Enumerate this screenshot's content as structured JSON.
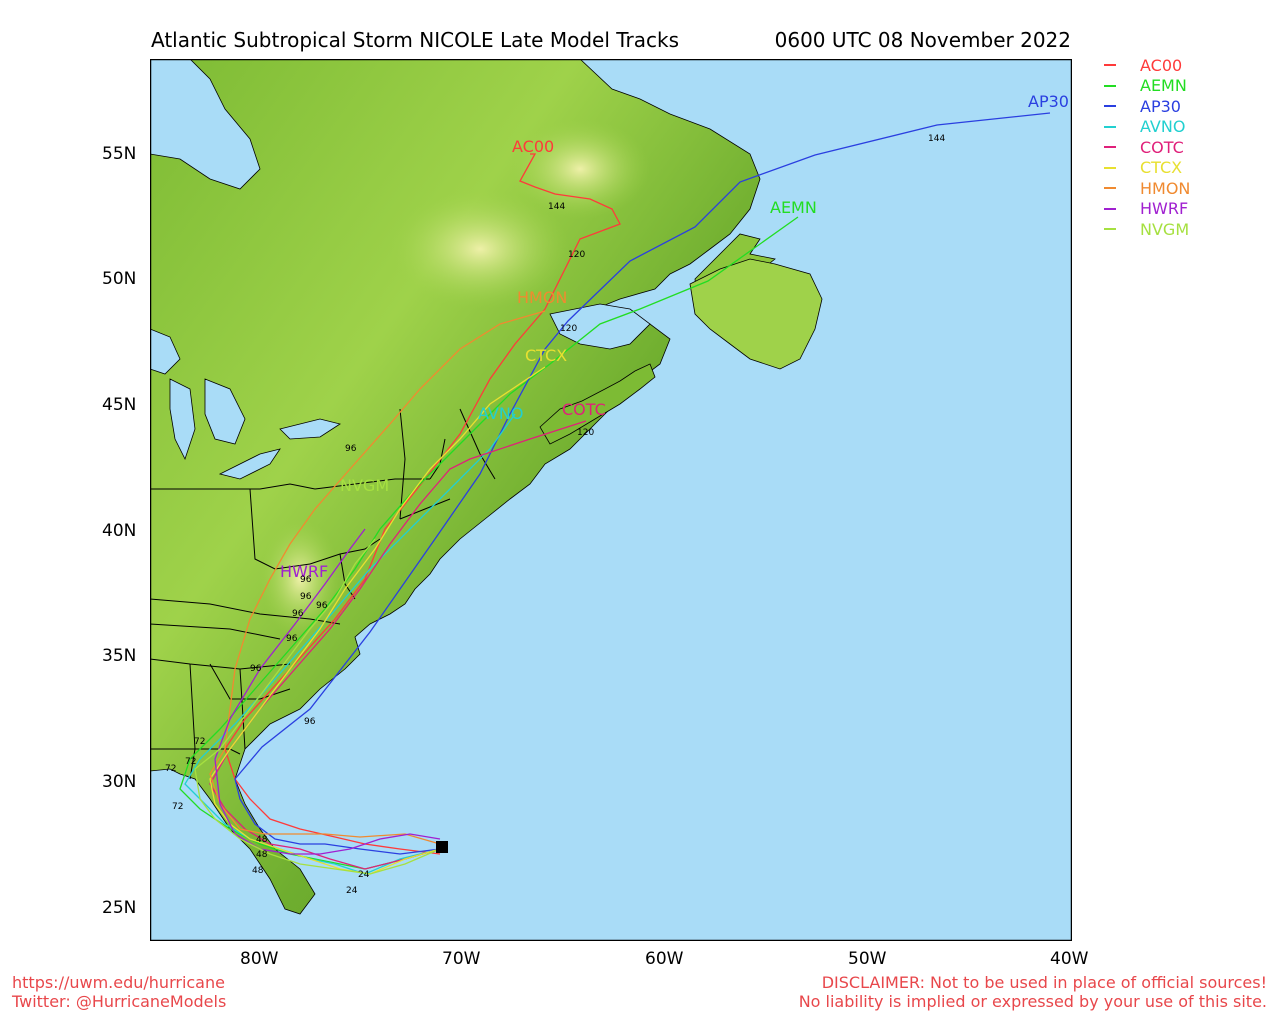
{
  "title": "Atlantic Subtropical Storm NICOLE Late Model Tracks",
  "datetime": "0600 UTC 08 November 2022",
  "axes": {
    "lat_ticks": [
      "55N",
      "50N",
      "45N",
      "40N",
      "35N",
      "30N",
      "25N"
    ],
    "lon_ticks": [
      "80W",
      "70W",
      "60W",
      "50W",
      "40W"
    ]
  },
  "legend": [
    {
      "name": "AC00",
      "color": "#ff3a3a"
    },
    {
      "name": "AEMN",
      "color": "#22dd22"
    },
    {
      "name": "AP30",
      "color": "#2a3fe0"
    },
    {
      "name": "AVNO",
      "color": "#22d0d0"
    },
    {
      "name": "COTC",
      "color": "#e0207a"
    },
    {
      "name": "CTCX",
      "color": "#e8e030"
    },
    {
      "name": "HMON",
      "color": "#f08a30"
    },
    {
      "name": "HWRF",
      "color": "#a020d0"
    },
    {
      "name": "NVGM",
      "color": "#a6e040"
    }
  ],
  "track_labels": [
    {
      "text": "AC00",
      "color": "#ff3a3a"
    },
    {
      "text": "AEMN",
      "color": "#22dd22"
    },
    {
      "text": "AP30",
      "color": "#2a3fe0"
    },
    {
      "text": "HMON",
      "color": "#f08a30"
    },
    {
      "text": "CTCX",
      "color": "#e8e030"
    },
    {
      "text": "AVNO",
      "color": "#22d0d0"
    },
    {
      "text": "COTC",
      "color": "#e0207a"
    },
    {
      "text": "NVGM",
      "color": "#a6e040"
    },
    {
      "text": "HWRF",
      "color": "#a020d0"
    }
  ],
  "hour_labels": [
    "144",
    "120",
    "144",
    "120",
    "120",
    "96",
    "96",
    "96",
    "96",
    "96",
    "96",
    "96",
    "96",
    "72",
    "72",
    "72",
    "72",
    "48",
    "48",
    "48",
    "24",
    "24"
  ],
  "footer": {
    "left_line1": "https://uwm.edu/hurricane",
    "left_line2": "Twitter: @HurricaneModels",
    "right_line1": "DISCLAIMER: Not to be used in place of official sources!",
    "right_line2": "No liability is implied or expressed by your use of this site."
  },
  "colors": {
    "ocean": "#a9dcf7",
    "land_low": "#4f9a2a",
    "land_mid": "#8cc63c",
    "land_high": "#e9ef9c",
    "border": "#000000"
  }
}
